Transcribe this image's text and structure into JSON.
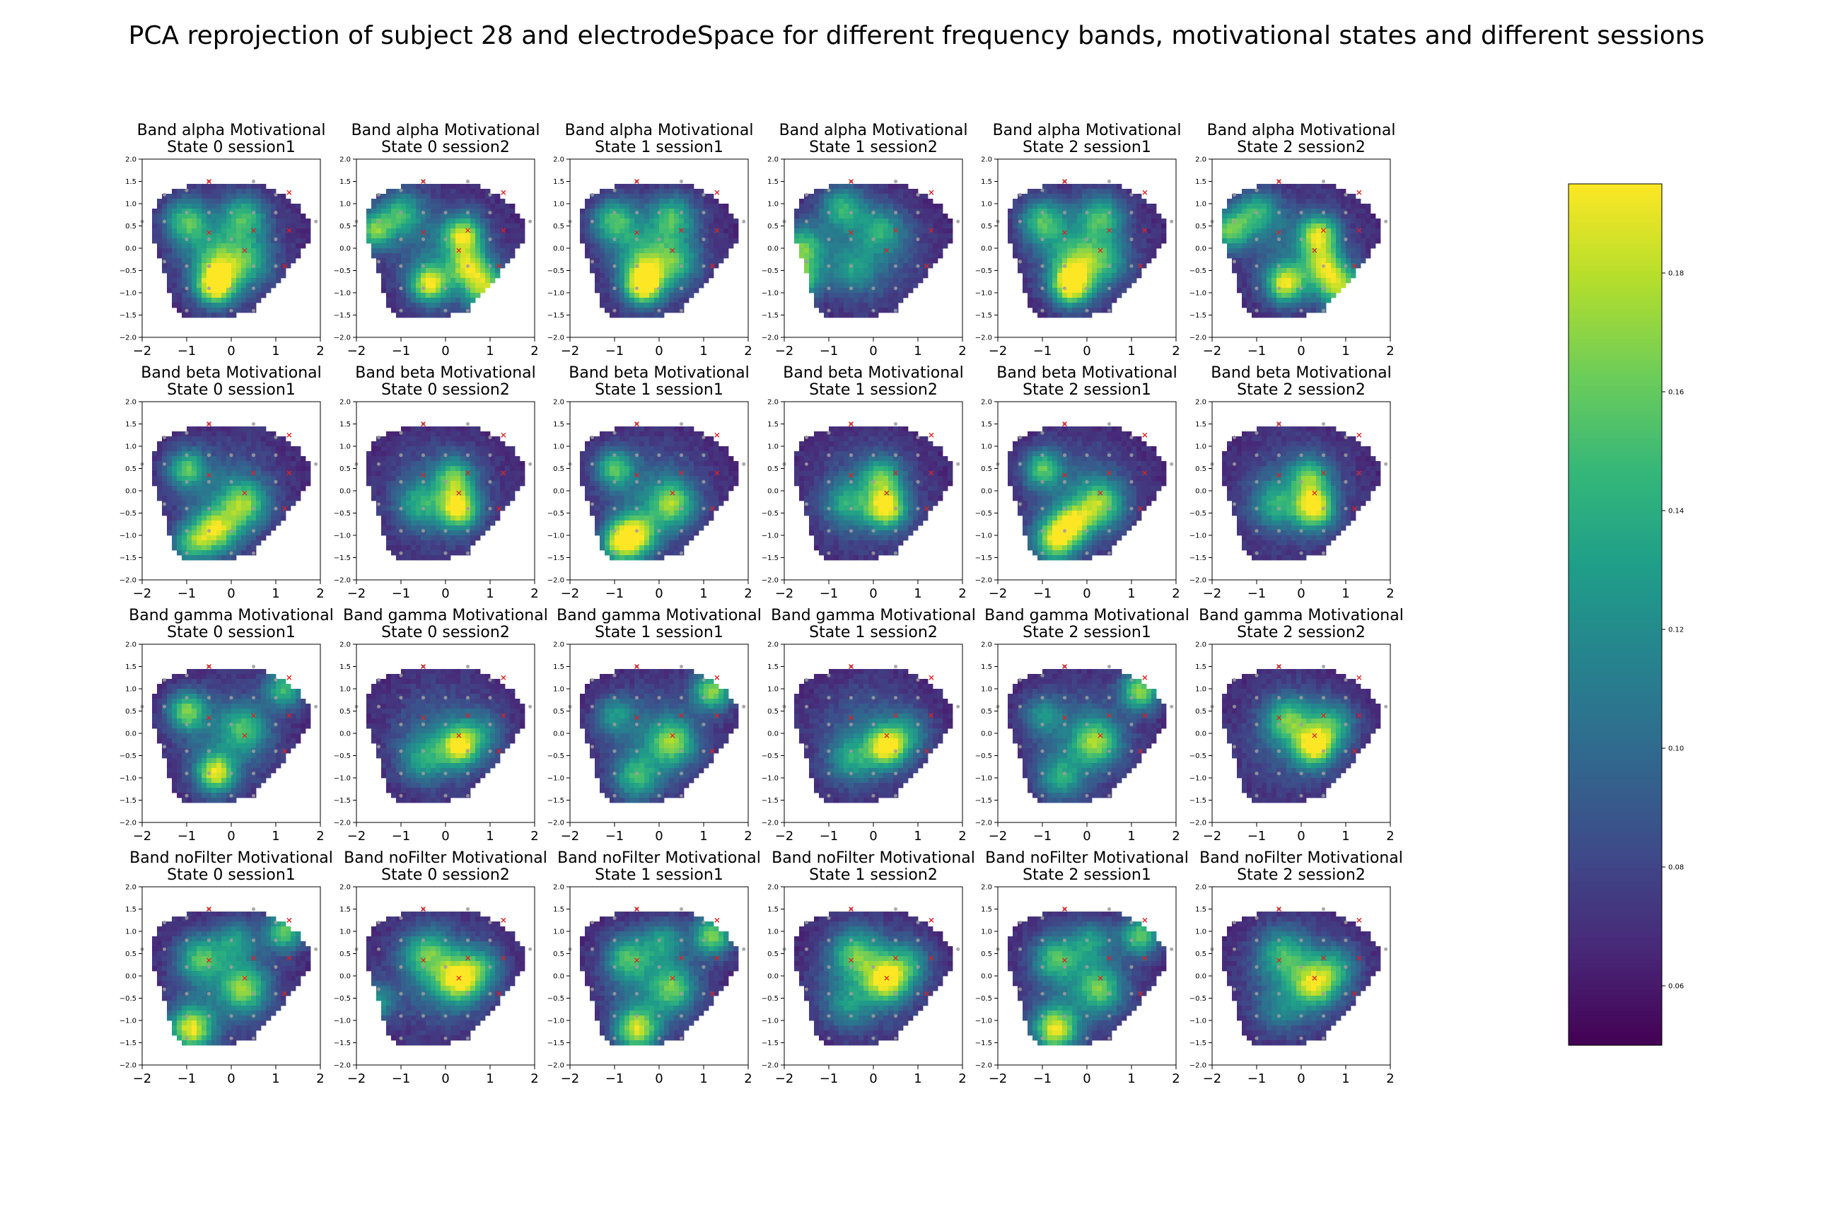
{
  "figure": {
    "suptitle": "PCA reprojection of subject 28 and electrodeSpace for different frequency bands, motivational states and different sessions"
  },
  "chart_data": {
    "type": "heatmap",
    "title": "PCA reprojection of subject 28 and electrodeSpace for different frequency bands, motivational states and different sessions",
    "colormap": "viridis",
    "grid": false,
    "xlim": [
      -2,
      2
    ],
    "ylim": [
      -2,
      2
    ],
    "x_ticks": [
      "−2",
      "−1",
      "0",
      "1",
      "2"
    ],
    "y_ticks": [
      "2.0",
      "1.5",
      "1.0",
      "0.5",
      "0.0",
      "−0.5",
      "−1.0",
      "−1.5",
      "−2.0"
    ],
    "colorbar": {
      "range": [
        0.05,
        0.195
      ],
      "ticks": [
        {
          "value": 0.06,
          "label": "0.06"
        },
        {
          "value": 0.08,
          "label": "0.08"
        },
        {
          "value": 0.1,
          "label": "0.10"
        },
        {
          "value": 0.12,
          "label": "0.12"
        },
        {
          "value": 0.14,
          "label": "0.14"
        },
        {
          "value": 0.16,
          "label": "0.16"
        },
        {
          "value": 0.18,
          "label": "0.18"
        }
      ]
    },
    "electrodes_grey": [
      [
        -2.0,
        0.6
      ],
      [
        -1.5,
        1.2
      ],
      [
        -1.0,
        1.3
      ],
      [
        -0.5,
        1.5
      ],
      [
        0.5,
        1.5
      ],
      [
        1.0,
        1.2
      ],
      [
        1.9,
        0.6
      ],
      [
        -1.0,
        0.8
      ],
      [
        -0.5,
        0.8
      ],
      [
        0,
        0.8
      ],
      [
        0.5,
        0.8
      ],
      [
        1.0,
        0.8
      ],
      [
        -1.5,
        0.6
      ],
      [
        -1.0,
        0.2
      ],
      [
        -0.5,
        0.2
      ],
      [
        0,
        0.2
      ],
      [
        1.0,
        0.2
      ],
      [
        -1.5,
        -0.3
      ],
      [
        -1.0,
        -0.4
      ],
      [
        -0.5,
        -0.4
      ],
      [
        0.5,
        -0.4
      ],
      [
        1.0,
        -0.4
      ],
      [
        -1.0,
        -0.9
      ],
      [
        -0.5,
        -0.9
      ],
      [
        0,
        -0.9
      ],
      [
        0.5,
        -0.9
      ],
      [
        -1.0,
        -1.4
      ],
      [
        0,
        -1.4
      ],
      [
        0.5,
        -1.4
      ]
    ],
    "electrodes_red": [
      [
        -0.5,
        1.5
      ],
      [
        1.3,
        1.25
      ],
      [
        0.5,
        0.4
      ],
      [
        1.3,
        0.4
      ],
      [
        -0.5,
        0.35
      ],
      [
        0.3,
        -0.05
      ],
      [
        1.2,
        -0.4
      ]
    ],
    "panels": [
      {
        "band": "alpha",
        "state": 0,
        "session": 1,
        "title_line1": "Band alpha Motivational",
        "title_line2": "State 0 session1",
        "hotspots": [
          [
            -0.35,
            -0.85,
            0.3,
            0.19
          ],
          [
            -1.0,
            0.6,
            0.35,
            0.15
          ],
          [
            0.3,
            0.7,
            0.35,
            0.14
          ],
          [
            -0.3,
            -0.3,
            0.4,
            0.13
          ],
          [
            0.4,
            -0.3,
            0.35,
            0.12
          ]
        ]
      },
      {
        "band": "alpha",
        "state": 0,
        "session": 2,
        "title_line1": "Band alpha Motivational",
        "title_line2": "State 0 session2",
        "hotspots": [
          [
            -0.35,
            -0.8,
            0.3,
            0.18
          ],
          [
            0.4,
            0.3,
            0.3,
            0.17
          ],
          [
            0.9,
            -0.9,
            0.35,
            0.17
          ],
          [
            -1.6,
            0.4,
            0.3,
            0.16
          ],
          [
            -1.0,
            0.8,
            0.35,
            0.14
          ],
          [
            0.5,
            -0.4,
            0.3,
            0.15
          ]
        ]
      },
      {
        "band": "alpha",
        "state": 1,
        "session": 1,
        "title_line1": "Band alpha Motivational",
        "title_line2": "State 1 session1",
        "hotspots": [
          [
            -0.35,
            -0.85,
            0.3,
            0.19
          ],
          [
            -1.0,
            0.6,
            0.35,
            0.15
          ],
          [
            0.3,
            0.7,
            0.35,
            0.14
          ],
          [
            -0.3,
            -0.3,
            0.4,
            0.13
          ],
          [
            0.4,
            -0.3,
            0.35,
            0.12
          ]
        ]
      },
      {
        "band": "alpha",
        "state": 1,
        "session": 2,
        "title_line1": "Band alpha Motivational",
        "title_line2": "State 1 session2",
        "hotspots": [
          [
            -1.6,
            0.0,
            0.35,
            0.16
          ],
          [
            -1.6,
            -0.7,
            0.3,
            0.15
          ],
          [
            -0.7,
            0.9,
            0.35,
            0.14
          ],
          [
            0.2,
            0.4,
            0.35,
            0.12
          ],
          [
            -0.5,
            -0.5,
            0.35,
            0.11
          ]
        ]
      },
      {
        "band": "alpha",
        "state": 2,
        "session": 1,
        "title_line1": "Band alpha Motivational",
        "title_line2": "State 2 session1",
        "hotspots": [
          [
            -0.35,
            -0.85,
            0.3,
            0.19
          ],
          [
            -1.0,
            0.6,
            0.35,
            0.15
          ],
          [
            0.3,
            0.7,
            0.35,
            0.14
          ],
          [
            -0.3,
            -0.3,
            0.4,
            0.13
          ],
          [
            0.4,
            -0.3,
            0.35,
            0.12
          ]
        ]
      },
      {
        "band": "alpha",
        "state": 2,
        "session": 2,
        "title_line1": "Band alpha Motivational",
        "title_line2": "State 2 session2",
        "hotspots": [
          [
            -0.35,
            -0.8,
            0.3,
            0.18
          ],
          [
            0.4,
            0.3,
            0.3,
            0.17
          ],
          [
            0.9,
            -0.9,
            0.35,
            0.17
          ],
          [
            -1.6,
            0.4,
            0.3,
            0.16
          ],
          [
            -1.0,
            0.8,
            0.35,
            0.14
          ],
          [
            0.5,
            -0.4,
            0.3,
            0.15
          ]
        ]
      },
      {
        "band": "beta",
        "state": 0,
        "session": 1,
        "title_line1": "Band beta Motivational",
        "title_line2": "State 0 session1",
        "hotspots": [
          [
            -1.0,
            0.5,
            0.3,
            0.15
          ],
          [
            -0.35,
            -0.9,
            0.35,
            0.17
          ],
          [
            0.3,
            -0.3,
            0.35,
            0.15
          ],
          [
            -0.9,
            -1.2,
            0.3,
            0.14
          ]
        ]
      },
      {
        "band": "beta",
        "state": 0,
        "session": 2,
        "title_line1": "Band beta Motivational",
        "title_line2": "State 0 session2",
        "hotspots": [
          [
            0.3,
            -0.4,
            0.3,
            0.18
          ],
          [
            0.2,
            0.3,
            0.3,
            0.14
          ],
          [
            -0.6,
            -0.3,
            0.35,
            0.12
          ]
        ]
      },
      {
        "band": "beta",
        "state": 1,
        "session": 1,
        "title_line1": "Band beta Motivational",
        "title_line2": "State 1 session1",
        "hotspots": [
          [
            -1.0,
            0.5,
            0.3,
            0.15
          ],
          [
            -0.55,
            -1.0,
            0.35,
            0.18
          ],
          [
            0.3,
            -0.3,
            0.35,
            0.15
          ],
          [
            -0.9,
            -1.2,
            0.3,
            0.15
          ]
        ]
      },
      {
        "band": "beta",
        "state": 1,
        "session": 2,
        "title_line1": "Band beta Motivational",
        "title_line2": "State 1 session2",
        "hotspots": [
          [
            0.3,
            -0.4,
            0.3,
            0.18
          ],
          [
            0.2,
            0.3,
            0.3,
            0.14
          ],
          [
            -0.6,
            -0.3,
            0.35,
            0.12
          ]
        ]
      },
      {
        "band": "beta",
        "state": 2,
        "session": 1,
        "title_line1": "Band beta Motivational",
        "title_line2": "State 2 session1",
        "hotspots": [
          [
            -1.0,
            0.5,
            0.3,
            0.15
          ],
          [
            -0.7,
            -1.1,
            0.35,
            0.18
          ],
          [
            0.3,
            -0.3,
            0.35,
            0.15
          ],
          [
            -0.3,
            -0.7,
            0.3,
            0.15
          ]
        ]
      },
      {
        "band": "beta",
        "state": 2,
        "session": 2,
        "title_line1": "Band beta Motivational",
        "title_line2": "State 2 session2",
        "hotspots": [
          [
            0.3,
            -0.4,
            0.3,
            0.18
          ],
          [
            0.2,
            0.3,
            0.3,
            0.14
          ],
          [
            -0.6,
            -0.3,
            0.35,
            0.12
          ]
        ]
      },
      {
        "band": "gamma",
        "state": 0,
        "session": 1,
        "title_line1": "Band gamma Motivational",
        "title_line2": "State 0 session1",
        "hotspots": [
          [
            -1.0,
            0.5,
            0.3,
            0.16
          ],
          [
            -0.35,
            -0.9,
            0.3,
            0.18
          ],
          [
            1.2,
            1.0,
            0.3,
            0.15
          ],
          [
            0.3,
            0.1,
            0.35,
            0.13
          ]
        ]
      },
      {
        "band": "gamma",
        "state": 0,
        "session": 2,
        "title_line1": "Band gamma Motivational",
        "title_line2": "State 0 session2",
        "hotspots": [
          [
            0.3,
            -0.3,
            0.3,
            0.17
          ],
          [
            -0.5,
            -0.6,
            0.35,
            0.12
          ],
          [
            0.8,
            0.0,
            0.35,
            0.11
          ]
        ]
      },
      {
        "band": "gamma",
        "state": 1,
        "session": 1,
        "title_line1": "Band gamma Motivational",
        "title_line2": "State 1 session1",
        "hotspots": [
          [
            1.2,
            0.95,
            0.3,
            0.17
          ],
          [
            0.3,
            -0.2,
            0.35,
            0.15
          ],
          [
            -0.5,
            -1.0,
            0.35,
            0.14
          ],
          [
            -1.0,
            0.4,
            0.3,
            0.12
          ]
        ]
      },
      {
        "band": "gamma",
        "state": 1,
        "session": 2,
        "title_line1": "Band gamma Motivational",
        "title_line2": "State 1 session2",
        "hotspots": [
          [
            0.3,
            -0.3,
            0.3,
            0.18
          ],
          [
            -0.5,
            -0.6,
            0.35,
            0.12
          ],
          [
            0.8,
            0.0,
            0.35,
            0.11
          ]
        ]
      },
      {
        "band": "gamma",
        "state": 2,
        "session": 1,
        "title_line1": "Band gamma Motivational",
        "title_line2": "State 2 session1",
        "hotspots": [
          [
            1.2,
            0.95,
            0.3,
            0.17
          ],
          [
            0.2,
            -0.2,
            0.35,
            0.15
          ],
          [
            -0.6,
            -1.0,
            0.35,
            0.13
          ],
          [
            -1.0,
            0.4,
            0.3,
            0.12
          ]
        ]
      },
      {
        "band": "gamma",
        "state": 2,
        "session": 2,
        "title_line1": "Band gamma Motivational",
        "title_line2": "State 2 session2",
        "hotspots": [
          [
            0.3,
            -0.3,
            0.3,
            0.18
          ],
          [
            -0.3,
            0.3,
            0.35,
            0.14
          ],
          [
            0.7,
            0.2,
            0.35,
            0.13
          ]
        ]
      },
      {
        "band": "noFilter",
        "state": 0,
        "session": 1,
        "title_line1": "Band noFilter Motivational",
        "title_line2": "State 0 session1",
        "hotspots": [
          [
            -0.9,
            -1.2,
            0.35,
            0.19
          ],
          [
            1.2,
            1.0,
            0.3,
            0.16
          ],
          [
            0.3,
            -0.3,
            0.35,
            0.15
          ],
          [
            -0.7,
            0.4,
            0.35,
            0.14
          ],
          [
            0.1,
            0.8,
            0.3,
            0.12
          ]
        ]
      },
      {
        "band": "noFilter",
        "state": 0,
        "session": 2,
        "title_line1": "Band noFilter Motivational",
        "title_line2": "State 0 session2",
        "hotspots": [
          [
            0.3,
            -0.1,
            0.35,
            0.17
          ],
          [
            -0.4,
            0.5,
            0.4,
            0.14
          ],
          [
            -1.6,
            -0.6,
            0.3,
            0.13
          ],
          [
            0.8,
            0.2,
            0.35,
            0.12
          ]
        ]
      },
      {
        "band": "noFilter",
        "state": 1,
        "session": 1,
        "title_line1": "Band noFilter Motivational",
        "title_line2": "State 1 session1",
        "hotspots": [
          [
            -0.5,
            -1.2,
            0.35,
            0.18
          ],
          [
            1.2,
            0.9,
            0.3,
            0.17
          ],
          [
            0.3,
            -0.3,
            0.35,
            0.14
          ],
          [
            -0.7,
            0.4,
            0.35,
            0.14
          ],
          [
            0.1,
            0.8,
            0.3,
            0.12
          ]
        ]
      },
      {
        "band": "noFilter",
        "state": 1,
        "session": 2,
        "title_line1": "Band noFilter Motivational",
        "title_line2": "State 1 session2",
        "hotspots": [
          [
            0.3,
            -0.1,
            0.35,
            0.17
          ],
          [
            -0.4,
            0.5,
            0.4,
            0.14
          ],
          [
            0.8,
            0.3,
            0.35,
            0.12
          ],
          [
            -0.6,
            -0.7,
            0.35,
            0.11
          ]
        ]
      },
      {
        "band": "noFilter",
        "state": 2,
        "session": 1,
        "title_line1": "Band noFilter Motivational",
        "title_line2": "State 2 session1",
        "hotspots": [
          [
            -0.7,
            -1.2,
            0.35,
            0.19
          ],
          [
            1.2,
            0.9,
            0.3,
            0.16
          ],
          [
            0.3,
            -0.3,
            0.35,
            0.14
          ],
          [
            -0.7,
            0.4,
            0.35,
            0.14
          ],
          [
            0.1,
            0.8,
            0.3,
            0.12
          ]
        ]
      },
      {
        "band": "noFilter",
        "state": 2,
        "session": 2,
        "title_line1": "Band noFilter Motivational",
        "title_line2": "State 2 session2",
        "hotspots": [
          [
            0.3,
            -0.2,
            0.35,
            0.16
          ],
          [
            -0.4,
            0.5,
            0.4,
            0.13
          ],
          [
            0.8,
            0.2,
            0.35,
            0.12
          ],
          [
            -0.5,
            -0.8,
            0.35,
            0.1
          ]
        ]
      }
    ]
  }
}
